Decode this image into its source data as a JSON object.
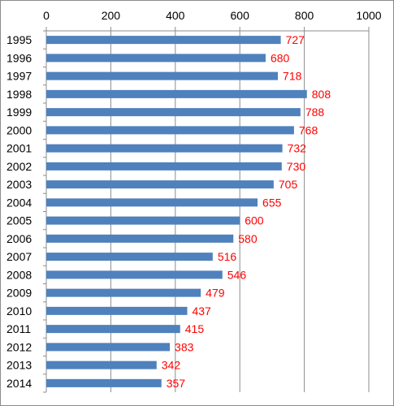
{
  "chart_data": {
    "type": "bar",
    "orientation": "horizontal",
    "categories": [
      "1995",
      "1996",
      "1997",
      "1998",
      "1999",
      "2000",
      "2001",
      "2002",
      "2003",
      "2004",
      "2005",
      "2006",
      "2007",
      "2008",
      "2009",
      "2010",
      "2011",
      "2012",
      "2013",
      "2014"
    ],
    "values": [
      727,
      680,
      718,
      808,
      788,
      768,
      732,
      730,
      705,
      655,
      600,
      580,
      516,
      546,
      479,
      437,
      415,
      383,
      342,
      357
    ],
    "data_labels": [
      "727",
      "680",
      "718",
      "808",
      "788",
      "768",
      "732",
      "730",
      "705",
      "655",
      "600",
      "580",
      "516",
      "546",
      "479",
      "437",
      "415",
      "383",
      "342",
      "357"
    ],
    "xlim": [
      0,
      1000
    ],
    "x_ticks": [
      0,
      200,
      400,
      600,
      800,
      1000
    ],
    "x_tick_labels": [
      "0",
      "200",
      "400",
      "600",
      "800",
      "1000"
    ],
    "x_axis_position": "top",
    "grid": true,
    "legend": false,
    "bar_color": "#4f81bd",
    "data_label_color": "#ff0000",
    "title": "",
    "xlabel": "",
    "ylabel": ""
  }
}
